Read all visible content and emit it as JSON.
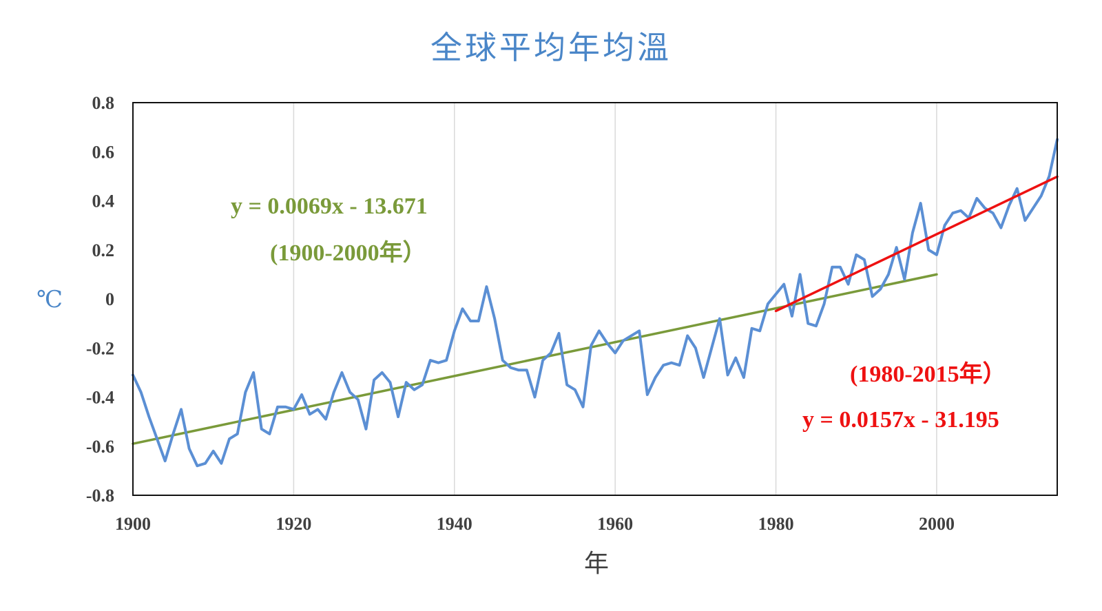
{
  "chart_data": {
    "type": "line",
    "title": "全球平均年均溫",
    "xlabel": "年",
    "ylabel": "℃",
    "xlim": [
      1900,
      2015
    ],
    "ylim": [
      -0.8,
      0.8
    ],
    "x_ticks": [
      "1900",
      "1920",
      "1940",
      "1960",
      "1980",
      "2000"
    ],
    "y_ticks": [
      "0.8",
      "0.6",
      "0.4",
      "0.2",
      "0",
      "-0.2",
      "-0.4",
      "-0.6",
      "-0.8"
    ],
    "grid": "vertical",
    "series": [
      {
        "color": "#5b8fd4",
        "x": [
          1900,
          1901,
          1902,
          1903,
          1904,
          1905,
          1906,
          1907,
          1908,
          1909,
          1910,
          1911,
          1912,
          1913,
          1914,
          1915,
          1916,
          1917,
          1918,
          1919,
          1920,
          1921,
          1922,
          1923,
          1924,
          1925,
          1926,
          1927,
          1928,
          1929,
          1930,
          1931,
          1932,
          1933,
          1934,
          1935,
          1936,
          1937,
          1938,
          1939,
          1940,
          1941,
          1942,
          1943,
          1944,
          1945,
          1946,
          1947,
          1948,
          1949,
          1950,
          1951,
          1952,
          1953,
          1954,
          1955,
          1956,
          1957,
          1958,
          1959,
          1960,
          1961,
          1962,
          1963,
          1964,
          1965,
          1966,
          1967,
          1968,
          1969,
          1970,
          1971,
          1972,
          1973,
          1974,
          1975,
          1976,
          1977,
          1978,
          1979,
          1980,
          1981,
          1982,
          1983,
          1984,
          1985,
          1986,
          1987,
          1988,
          1989,
          1990,
          1991,
          1992,
          1993,
          1994,
          1995,
          1996,
          1997,
          1998,
          1999,
          2000,
          2001,
          2002,
          2003,
          2004,
          2005,
          2006,
          2007,
          2008,
          2009,
          2010,
          2011,
          2012,
          2013,
          2014,
          2015
        ],
        "values": [
          -0.31,
          -0.38,
          -0.48,
          -0.57,
          -0.66,
          -0.55,
          -0.45,
          -0.61,
          -0.68,
          -0.67,
          -0.62,
          -0.67,
          -0.57,
          -0.55,
          -0.38,
          -0.3,
          -0.53,
          -0.55,
          -0.44,
          -0.44,
          -0.45,
          -0.39,
          -0.47,
          -0.45,
          -0.49,
          -0.38,
          -0.3,
          -0.38,
          -0.41,
          -0.53,
          -0.33,
          -0.3,
          -0.34,
          -0.48,
          -0.34,
          -0.37,
          -0.35,
          -0.25,
          -0.26,
          -0.25,
          -0.13,
          -0.04,
          -0.09,
          -0.09,
          0.05,
          -0.08,
          -0.25,
          -0.28,
          -0.29,
          -0.29,
          -0.4,
          -0.25,
          -0.22,
          -0.14,
          -0.35,
          -0.37,
          -0.44,
          -0.19,
          -0.13,
          -0.18,
          -0.22,
          -0.17,
          -0.15,
          -0.13,
          -0.39,
          -0.32,
          -0.27,
          -0.26,
          -0.27,
          -0.15,
          -0.2,
          -0.32,
          -0.2,
          -0.08,
          -0.31,
          -0.24,
          -0.32,
          -0.12,
          -0.13,
          -0.02,
          0.02,
          0.06,
          -0.07,
          0.1,
          -0.1,
          -0.11,
          -0.02,
          0.13,
          0.13,
          0.06,
          0.18,
          0.16,
          0.01,
          0.04,
          0.1,
          0.21,
          0.08,
          0.27,
          0.39,
          0.2,
          0.18,
          0.3,
          0.35,
          0.36,
          0.33,
          0.41,
          0.37,
          0.35,
          0.29,
          0.38,
          0.45,
          0.32,
          0.37,
          0.42,
          0.5,
          0.65
        ]
      },
      {
        "color": "#7a9a3a",
        "x": [
          1900,
          2000
        ],
        "values": [
          -0.59,
          0.1
        ]
      },
      {
        "color": "#ee1111",
        "x": [
          1980,
          2015
        ],
        "values": [
          -0.049,
          0.4985
        ]
      }
    ],
    "annotations": {
      "green_eq": "y = 0.0069x - 13.671",
      "green_range": "(1900-2000年）",
      "red_range": "(1980-2015年）",
      "red_eq": "y = 0.0157x - 31.195"
    }
  }
}
